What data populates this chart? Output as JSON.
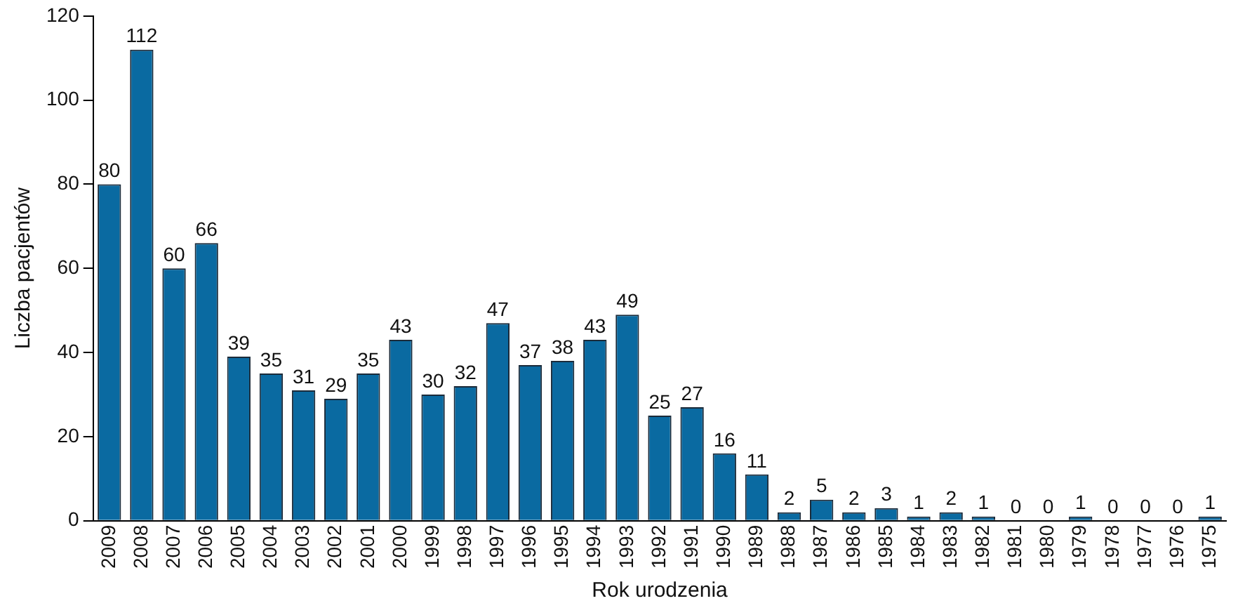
{
  "chart_data": {
    "type": "bar",
    "xlabel": "Rok urodzenia",
    "ylabel": "Liczba pacjentów",
    "categories": [
      "2009",
      "2008",
      "2007",
      "2006",
      "2005",
      "2004",
      "2003",
      "2002",
      "2001",
      "2000",
      "1999",
      "1998",
      "1997",
      "1996",
      "1995",
      "1994",
      "1993",
      "1992",
      "1991",
      "1990",
      "1989",
      "1988",
      "1987",
      "1986",
      "1985",
      "1984",
      "1983",
      "1982",
      "1981",
      "1980",
      "1979",
      "1978",
      "1977",
      "1976",
      "1975"
    ],
    "values": [
      80,
      112,
      60,
      66,
      39,
      35,
      31,
      29,
      35,
      43,
      30,
      32,
      47,
      37,
      38,
      43,
      49,
      25,
      27,
      16,
      11,
      2,
      5,
      2,
      3,
      1,
      2,
      1,
      0,
      0,
      1,
      0,
      0,
      0,
      1
    ],
    "color": "#0a6aa1",
    "ylim": [
      0,
      120
    ],
    "yticks": [
      0,
      20,
      40,
      60,
      80,
      100,
      120
    ],
    "grid": false,
    "legend": false,
    "data_labels": true
  }
}
